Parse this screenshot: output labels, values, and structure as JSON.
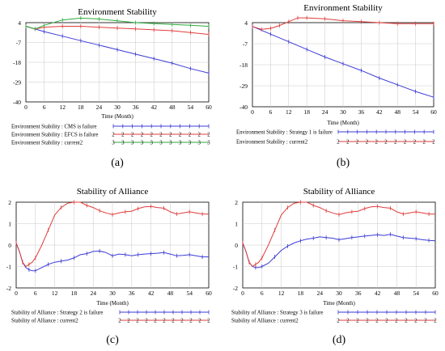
{
  "chart_data": [
    {
      "type": "line",
      "caption": "(a)",
      "title": "Environment Stability",
      "xlabel": "Time (Month)",
      "xlim": [
        0,
        60
      ],
      "ylim": [
        -40,
        4
      ],
      "x_ticks": [
        0,
        6,
        12,
        18,
        24,
        30,
        36,
        42,
        48,
        54,
        60
      ],
      "y_ticks": [
        4,
        -7,
        -18,
        -29,
        -40
      ],
      "grid": true,
      "legend_position": "bottom",
      "series": [
        {
          "name": "Environment Stability : CMS is failure",
          "color": "#3b3bd6",
          "marker": "+",
          "x": [
            0,
            6,
            12,
            18,
            24,
            30,
            36,
            42,
            48,
            54,
            60
          ],
          "y": [
            2,
            -1,
            -3.5,
            -6,
            -8.5,
            -11,
            -13.5,
            -16,
            -18.5,
            -21.5,
            -24
          ]
        },
        {
          "name": "Environment Stability : EFCS is failure",
          "color": "#e03c3c",
          "marker": "2",
          "x": [
            0,
            3,
            6,
            12,
            18,
            24,
            30,
            36,
            42,
            48,
            54,
            60
          ],
          "y": [
            2,
            0.5,
            1.5,
            2,
            2,
            1.5,
            1,
            0.5,
            0,
            -0.5,
            -1.5,
            -2.5
          ]
        },
        {
          "name": "Environment Stability : current2",
          "color": "#2eaa3c",
          "marker": "3",
          "x": [
            0,
            3,
            6,
            12,
            18,
            24,
            30,
            36,
            42,
            48,
            54,
            60
          ],
          "y": [
            2,
            0.5,
            2.5,
            5.5,
            6.5,
            6,
            5,
            4,
            3.5,
            3,
            2.5,
            2
          ]
        }
      ]
    },
    {
      "type": "line",
      "caption": "(b)",
      "title": "Environment Stability",
      "xlabel": "Time (Month)",
      "xlim": [
        0,
        60
      ],
      "ylim": [
        -40,
        4
      ],
      "x_ticks": [
        0,
        6,
        12,
        18,
        24,
        30,
        36,
        42,
        48,
        54,
        60
      ],
      "y_ticks": [
        4,
        -7,
        -18,
        -29,
        -40
      ],
      "grid": true,
      "legend_position": "bottom",
      "series": [
        {
          "name": "Environment Stability : Strategy 1 is failure",
          "color": "#3b3bd6",
          "marker": "1",
          "x": [
            0,
            6,
            12,
            18,
            24,
            30,
            36,
            42,
            48,
            54,
            60
          ],
          "y": [
            2,
            -2,
            -6,
            -10,
            -14,
            -17.5,
            -21,
            -25,
            -28.5,
            -32,
            -35
          ]
        },
        {
          "name": "Environment Stability : current2",
          "color": "#e03c3c",
          "marker": "2",
          "x": [
            0,
            3,
            6,
            9,
            12,
            15,
            18,
            24,
            30,
            36,
            42,
            48,
            54,
            60
          ],
          "y": [
            2,
            0.5,
            1,
            2.5,
            4.5,
            6.5,
            6.5,
            6,
            5,
            4.5,
            4,
            3.5,
            3.5,
            3.5
          ]
        }
      ]
    },
    {
      "type": "line",
      "caption": "(c)",
      "title": "Stability of Alliance",
      "xlabel": "Time (Month)",
      "xlim": [
        0,
        60
      ],
      "ylim": [
        -2,
        2
      ],
      "x_ticks": [
        0,
        6,
        12,
        18,
        24,
        30,
        36,
        42,
        48,
        54,
        60
      ],
      "y_ticks": [
        2,
        1,
        0,
        -1,
        -2
      ],
      "grid": true,
      "legend_position": "bottom",
      "series": [
        {
          "name": "Stability of Alliance : Strategy 2 is failure",
          "color": "#3b3bd6",
          "marker": "1",
          "x": [
            0,
            1,
            2,
            3,
            4,
            5,
            6,
            8,
            10,
            12,
            14,
            16,
            18,
            20,
            22,
            24,
            26,
            28,
            30,
            32,
            34,
            36,
            38,
            40,
            42,
            44,
            46,
            48,
            50,
            52,
            54,
            56,
            58,
            60
          ],
          "y": [
            0.1,
            -0.3,
            -0.8,
            -1.05,
            -1.15,
            -1.2,
            -1.2,
            -1.05,
            -0.9,
            -0.8,
            -0.75,
            -0.7,
            -0.6,
            -0.45,
            -0.4,
            -0.3,
            -0.28,
            -0.35,
            -0.5,
            -0.42,
            -0.45,
            -0.5,
            -0.45,
            -0.42,
            -0.4,
            -0.38,
            -0.35,
            -0.42,
            -0.5,
            -0.48,
            -0.45,
            -0.5,
            -0.55,
            -0.55
          ]
        },
        {
          "name": "Stability of Alliance : current2",
          "color": "#e03c3c",
          "marker": "2",
          "x": [
            0,
            1,
            2,
            3,
            4,
            5,
            6,
            8,
            10,
            12,
            14,
            16,
            18,
            20,
            22,
            24,
            26,
            28,
            30,
            32,
            34,
            36,
            38,
            40,
            42,
            44,
            46,
            48,
            50,
            52,
            54,
            56,
            58,
            60
          ],
          "y": [
            0.1,
            -0.3,
            -0.8,
            -1.0,
            -0.9,
            -0.8,
            -0.6,
            0.0,
            0.7,
            1.4,
            1.75,
            1.95,
            2.0,
            2.0,
            1.85,
            1.75,
            1.6,
            1.5,
            1.42,
            1.5,
            1.55,
            1.58,
            1.7,
            1.78,
            1.8,
            1.75,
            1.72,
            1.55,
            1.45,
            1.5,
            1.55,
            1.5,
            1.45,
            1.45
          ]
        }
      ]
    },
    {
      "type": "line",
      "caption": "(d)",
      "title": "Stability of Alliance",
      "xlabel": "Time (Month)",
      "xlim": [
        0,
        60
      ],
      "ylim": [
        -2,
        2
      ],
      "x_ticks": [
        0,
        6,
        12,
        18,
        24,
        30,
        36,
        42,
        48,
        54,
        60
      ],
      "y_ticks": [
        2,
        1,
        0,
        -1,
        -2
      ],
      "grid": true,
      "legend_position": "bottom",
      "series": [
        {
          "name": "Stability of Alliance : Strategy 3 is failure",
          "color": "#3b3bd6",
          "marker": "1",
          "x": [
            0,
            1,
            2,
            3,
            4,
            5,
            6,
            8,
            10,
            12,
            14,
            16,
            18,
            20,
            22,
            24,
            26,
            28,
            30,
            32,
            34,
            36,
            38,
            40,
            42,
            44,
            46,
            48,
            50,
            52,
            54,
            56,
            58,
            60
          ],
          "y": [
            0.1,
            -0.3,
            -0.8,
            -1.0,
            -1.05,
            -1.05,
            -1.0,
            -0.85,
            -0.55,
            -0.25,
            -0.05,
            0.1,
            0.2,
            0.28,
            0.32,
            0.38,
            0.35,
            0.32,
            0.25,
            0.3,
            0.35,
            0.38,
            0.42,
            0.45,
            0.48,
            0.45,
            0.5,
            0.42,
            0.35,
            0.32,
            0.3,
            0.25,
            0.22,
            0.2
          ]
        },
        {
          "name": "Stability of Alliance : current2",
          "color": "#e03c3c",
          "marker": "2",
          "x": [
            0,
            1,
            2,
            3,
            4,
            5,
            6,
            8,
            10,
            12,
            14,
            16,
            18,
            20,
            22,
            24,
            26,
            28,
            30,
            32,
            34,
            36,
            38,
            40,
            42,
            44,
            46,
            48,
            50,
            52,
            54,
            56,
            58,
            60
          ],
          "y": [
            0.1,
            -0.3,
            -0.8,
            -1.0,
            -0.9,
            -0.8,
            -0.6,
            0.0,
            0.7,
            1.4,
            1.75,
            1.95,
            2.0,
            2.0,
            1.85,
            1.75,
            1.6,
            1.5,
            1.42,
            1.5,
            1.55,
            1.58,
            1.7,
            1.78,
            1.8,
            1.75,
            1.72,
            1.55,
            1.45,
            1.5,
            1.55,
            1.5,
            1.45,
            1.45
          ]
        }
      ]
    }
  ]
}
